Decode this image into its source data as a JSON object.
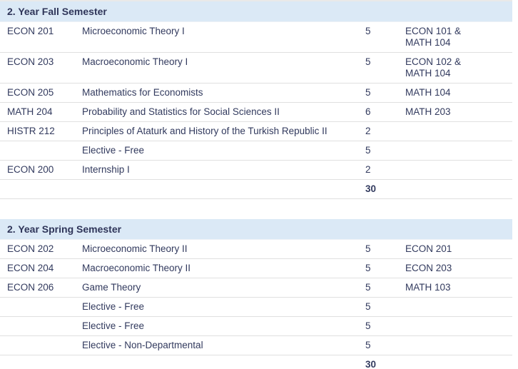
{
  "colors": {
    "header_bg": "#dbe9f6",
    "text": "#323a5e",
    "row_border": "#e0e0e0",
    "page_bg": "#ffffff"
  },
  "tables": [
    {
      "title": "2. Year Fall Semester",
      "rows": [
        {
          "code": "ECON 201",
          "title": "Microeconomic Theory I",
          "credits": "5",
          "prereq": "ECON 101 &\nMATH 104"
        },
        {
          "code": "ECON 203",
          "title": "Macroeconomic Theory I",
          "credits": "5",
          "prereq": "ECON 102 &\nMATH 104"
        },
        {
          "code": "ECON 205",
          "title": "Mathematics for Economists",
          "credits": "5",
          "prereq": "MATH 104"
        },
        {
          "code": "MATH 204",
          "title": "Probability and Statistics for Social Sciences II",
          "credits": "6",
          "prereq": "MATH 203"
        },
        {
          "code": "HISTR 212",
          "title": "Principles of Ataturk and History of the Turkish Republic II",
          "credits": "2",
          "prereq": ""
        },
        {
          "code": "",
          "title": "Elective - Free",
          "credits": "5",
          "prereq": ""
        },
        {
          "code": "ECON 200",
          "title": "Internship I",
          "credits": "2",
          "prereq": ""
        }
      ],
      "total_credits": "30"
    },
    {
      "title": "2. Year Spring Semester",
      "rows": [
        {
          "code": "ECON 202",
          "title": "Microeconomic Theory II",
          "credits": "5",
          "prereq": "ECON 201"
        },
        {
          "code": "ECON 204",
          "title": "Macroeconomic Theory II",
          "credits": "5",
          "prereq": "ECON 203"
        },
        {
          "code": "ECON 206",
          "title": "Game Theory",
          "credits": "5",
          "prereq": "MATH 103"
        },
        {
          "code": "",
          "title": "Elective - Free",
          "credits": "5",
          "prereq": ""
        },
        {
          "code": "",
          "title": "Elective - Free",
          "credits": "5",
          "prereq": ""
        },
        {
          "code": "",
          "title": "Elective - Non-Departmental",
          "credits": "5",
          "prereq": ""
        }
      ],
      "total_credits": "30"
    }
  ]
}
